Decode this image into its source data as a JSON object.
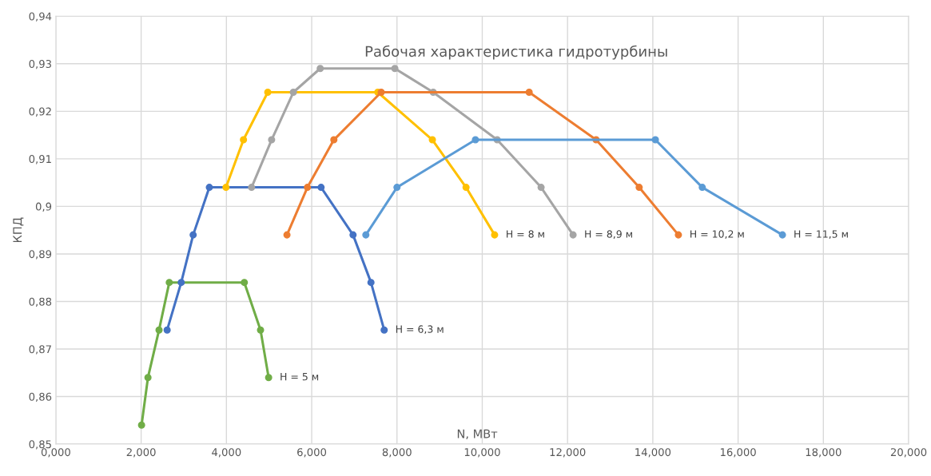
{
  "chart_data": {
    "type": "line",
    "title": "Рабочая характеристика гидротурбины",
    "xlabel": "N, МВт",
    "ylabel": "КПД",
    "series": [
      {
        "name": "H = 5 м",
        "color": "#70ad47",
        "x": [
          2.01,
          2.16,
          2.42,
          2.66,
          4.42,
          4.8,
          4.99
        ],
        "values": [
          0.854,
          0.864,
          0.874,
          0.884,
          0.884,
          0.874,
          0.864
        ]
      },
      {
        "name": "H = 6,3 м",
        "color": "#4472c4",
        "x": [
          2.61,
          2.94,
          3.22,
          3.6,
          6.22,
          6.97,
          7.39,
          7.7
        ],
        "values": [
          0.874,
          0.884,
          0.894,
          0.904,
          0.904,
          0.894,
          0.884,
          0.874
        ]
      },
      {
        "name": "H = 8 м",
        "color": "#ffc000",
        "x": [
          3.99,
          4.4,
          4.97,
          7.55,
          8.83,
          9.62,
          10.29
        ],
        "values": [
          0.904,
          0.914,
          0.924,
          0.924,
          0.914,
          0.904,
          0.894
        ]
      },
      {
        "name": "H = 8,9 м",
        "color": "#a5a5a5",
        "x": [
          4.59,
          5.06,
          5.57,
          6.2,
          7.95,
          8.85,
          10.35,
          11.38,
          12.13
        ],
        "values": [
          0.904,
          0.914,
          0.924,
          0.929,
          0.929,
          0.924,
          0.914,
          0.904,
          0.894
        ]
      },
      {
        "name": "H = 10,2 м",
        "color": "#ed7d31",
        "x": [
          5.42,
          5.9,
          6.52,
          7.63,
          11.1,
          12.67,
          13.68,
          14.6
        ],
        "values": [
          0.894,
          0.904,
          0.914,
          0.924,
          0.924,
          0.914,
          0.904,
          0.894
        ]
      },
      {
        "name": "H = 11,5 м",
        "color": "#5b9bd5",
        "x": [
          7.27,
          8.0,
          9.84,
          14.06,
          15.16,
          17.04
        ],
        "values": [
          0.894,
          0.904,
          0.914,
          0.914,
          0.904,
          0.894
        ]
      }
    ],
    "xlim": [
      0,
      20
    ],
    "xticks": [
      {
        "value": 0,
        "label": "0,000"
      },
      {
        "value": 2,
        "label": "2,000"
      },
      {
        "value": 4,
        "label": "4,000"
      },
      {
        "value": 6,
        "label": "6,000"
      },
      {
        "value": 8,
        "label": "8,000"
      },
      {
        "value": 10,
        "label": "10,000"
      },
      {
        "value": 12,
        "label": "12,000"
      },
      {
        "value": 14,
        "label": "14,000"
      },
      {
        "value": 16,
        "label": "16,000"
      },
      {
        "value": 18,
        "label": "18,000"
      },
      {
        "value": 20,
        "label": "20,000"
      }
    ],
    "ylim": [
      0.85,
      0.94
    ],
    "yticks": [
      {
        "value": 0.85,
        "label": "0,85"
      },
      {
        "value": 0.86,
        "label": "0,86"
      },
      {
        "value": 0.87,
        "label": "0,87"
      },
      {
        "value": 0.88,
        "label": "0,88"
      },
      {
        "value": 0.89,
        "label": "0,89"
      },
      {
        "value": 0.9,
        "label": "0,9"
      },
      {
        "value": 0.91,
        "label": "0,91"
      },
      {
        "value": 0.92,
        "label": "0,92"
      },
      {
        "value": 0.93,
        "label": "0,93"
      },
      {
        "value": 0.94,
        "label": "0,94"
      }
    ],
    "grid": true,
    "legend": false,
    "marker": "circle",
    "line_style": "solid"
  }
}
